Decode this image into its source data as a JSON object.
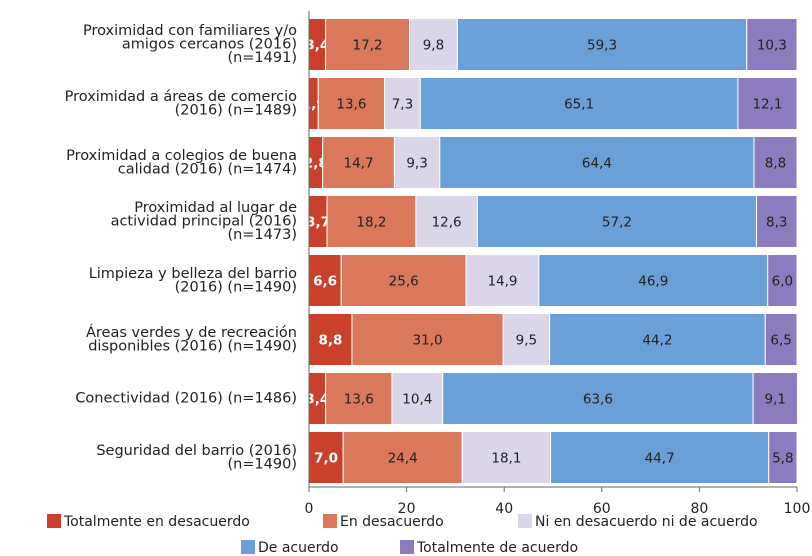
{
  "chart_data": {
    "type": "stacked-bar-horizontal",
    "categories": [
      "Proximidad con familiares y/o\namigos cercanos (2016)\n(n=1491)",
      "Proximidad a áreas de comercio\n(2016) (n=1489)",
      "Proximidad a colegios de buena\ncalidad (2016) (n=1474)",
      "Proximidad al lugar de\nactividad principal (2016)\n(n=1473)",
      "Limpieza y belleza del barrio\n(2016) (n=1490)",
      "Áreas verdes y de recreación\ndisponibles (2016) (n=1490)",
      "Conectividad (2016) (n=1486)",
      "Seguridad del barrio (2016)\n(n=1490)"
    ],
    "series": [
      {
        "name": "Totalmente en desacuerdo",
        "color": "#c9402b",
        "values": [
          3.4,
          1.9,
          2.8,
          3.7,
          6.6,
          8.8,
          3.4,
          7.0
        ],
        "value_labels": [
          "3,4",
          "1,9",
          "2,8",
          "3,7",
          "6,6",
          "8,8",
          "3,4",
          "7,0"
        ]
      },
      {
        "name": "En desacuerdo",
        "color": "#d9785b",
        "values": [
          17.2,
          13.6,
          14.7,
          18.2,
          25.6,
          31.0,
          13.6,
          24.4
        ],
        "value_labels": [
          "17,2",
          "13,6",
          "14,7",
          "18,2",
          "25,6",
          "31,0",
          "13,6",
          "24,4"
        ]
      },
      {
        "name": "Ni en desacuerdo ni de acuerdo",
        "color": "#dad5e9",
        "values": [
          9.8,
          7.3,
          9.3,
          12.6,
          14.9,
          9.5,
          10.4,
          18.1
        ],
        "value_labels": [
          "9,8",
          "7,3",
          "9,3",
          "12,6",
          "14,9",
          "9,5",
          "10,4",
          "18,1"
        ]
      },
      {
        "name": "De acuerdo",
        "color": "#6b9fd8",
        "values": [
          59.3,
          65.1,
          64.4,
          57.2,
          46.9,
          44.2,
          63.6,
          44.7
        ],
        "value_labels": [
          "59,3",
          "65,1",
          "64,4",
          "57,2",
          "46,9",
          "44,2",
          "63,6",
          "44,7"
        ]
      },
      {
        "name": "Totalmente de acuerdo",
        "color": "#8c7cbf",
        "values": [
          10.3,
          12.1,
          8.8,
          8.3,
          6.0,
          6.5,
          9.1,
          5.8
        ],
        "value_labels": [
          "10,3",
          "12,1",
          "8,8",
          "8,3",
          "6,0",
          "6,5",
          "9,1",
          "5,8"
        ]
      }
    ],
    "xlim": [
      0,
      100
    ],
    "xticks": [
      0,
      20,
      40,
      60,
      80,
      100
    ],
    "legend": "bottom"
  }
}
